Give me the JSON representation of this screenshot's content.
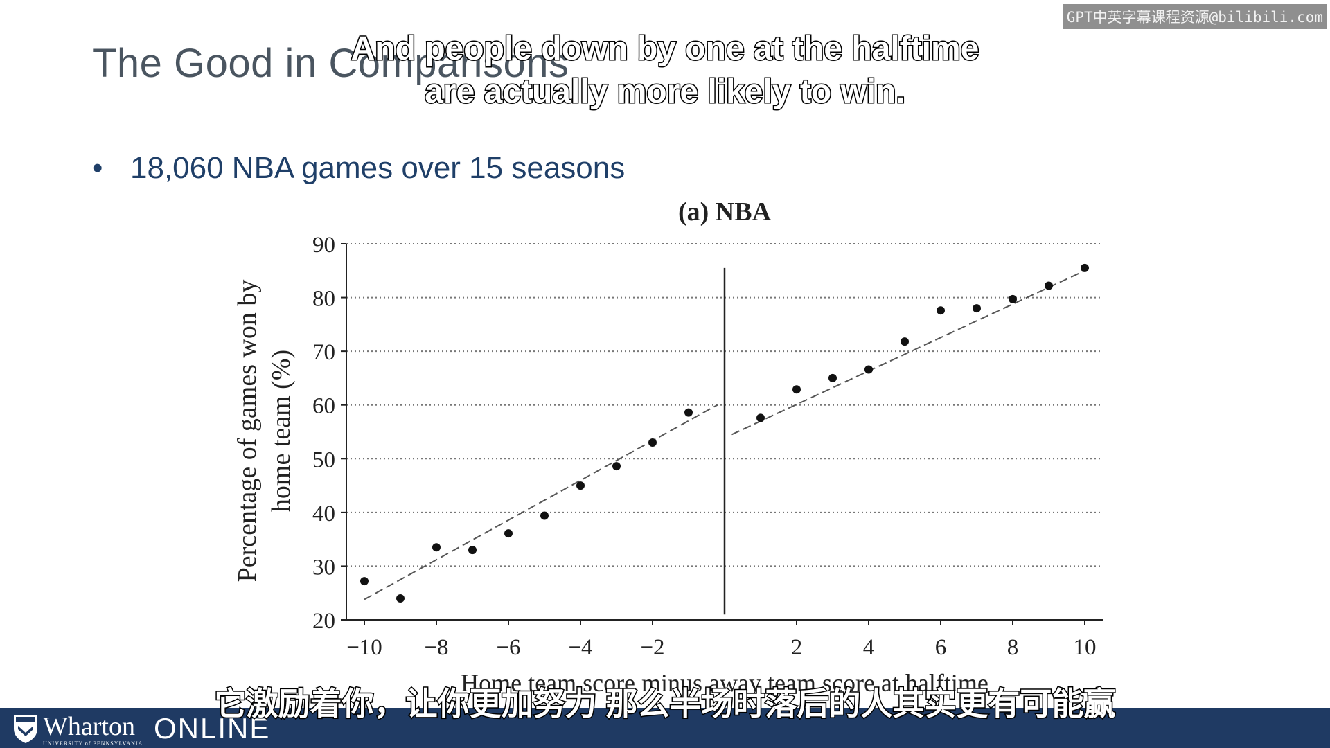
{
  "slide": {
    "title": "The Good in Comparisons",
    "bullet_symbol": "•",
    "bullet_text": "18,060 NBA games over 15 seasons"
  },
  "watermark": "GPT中英字幕课程资源@bilibili.com",
  "subtitles": {
    "english_line1": "And people down by one at the halftime",
    "english_line2": "are actually more likely to win.",
    "chinese": "它激励着你，让你更加努力 那么半场时落后的人其实更有可能赢"
  },
  "footer": {
    "brand": "Wharton",
    "brand_sub": "UNIVERSITY of PENNSYLVANIA",
    "online": "ONLINE",
    "background_color": "#1f3a63"
  },
  "chart_data": {
    "type": "scatter",
    "title": "(a) NBA",
    "xlabel": "Home team score minus away team score at halftime",
    "ylabel_line1": "Percentage of games won by",
    "ylabel_line2": "home team (%)",
    "xlim": [
      -10.5,
      10.5
    ],
    "ylim": [
      20,
      90
    ],
    "x_ticks": [
      -10,
      -8,
      -6,
      -4,
      -2,
      2,
      4,
      6,
      8,
      10
    ],
    "x_tick_labels": [
      "−10",
      "−8",
      "−6",
      "−4",
      "−2",
      "2",
      "4",
      "6",
      "8",
      "10"
    ],
    "y_ticks": [
      20,
      30,
      40,
      50,
      60,
      70,
      80,
      90
    ],
    "grid": "horizontal dotted",
    "cutoff_x": 0,
    "points": [
      {
        "x": -10,
        "y": 27.2
      },
      {
        "x": -9,
        "y": 24.0
      },
      {
        "x": -8,
        "y": 33.5
      },
      {
        "x": -7,
        "y": 33.0
      },
      {
        "x": -6,
        "y": 36.1
      },
      {
        "x": -5,
        "y": 39.4
      },
      {
        "x": -4,
        "y": 45.0
      },
      {
        "x": -3,
        "y": 48.6
      },
      {
        "x": -2,
        "y": 53.0
      },
      {
        "x": -1,
        "y": 58.6
      },
      {
        "x": 1,
        "y": 57.6
      },
      {
        "x": 2,
        "y": 62.9
      },
      {
        "x": 3,
        "y": 65.0
      },
      {
        "x": 4,
        "y": 66.6
      },
      {
        "x": 5,
        "y": 71.8
      },
      {
        "x": 6,
        "y": 77.6
      },
      {
        "x": 7,
        "y": 78.0
      },
      {
        "x": 8,
        "y": 79.7
      },
      {
        "x": 9,
        "y": 82.2
      },
      {
        "x": 10,
        "y": 85.5
      }
    ],
    "fit_lines": [
      {
        "x": [
          -10,
          -0.2
        ],
        "y": [
          23.8,
          60.0
        ]
      },
      {
        "x": [
          0.2,
          10
        ],
        "y": [
          54.5,
          85.0
        ]
      }
    ]
  }
}
